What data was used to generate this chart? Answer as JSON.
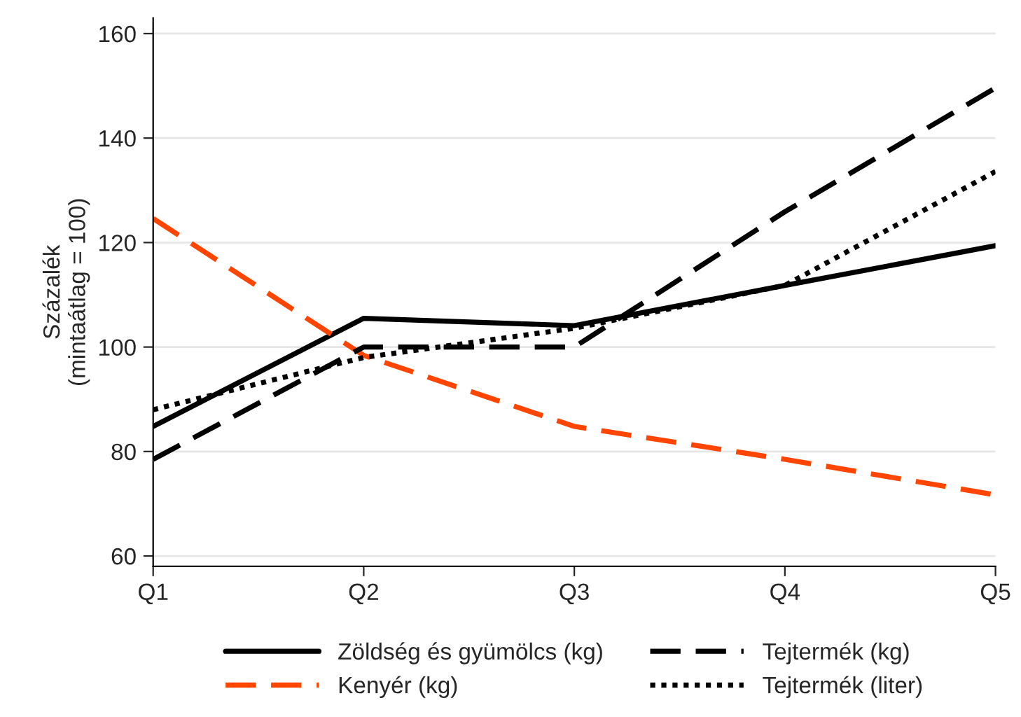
{
  "chart_data": {
    "type": "line",
    "ylabel": "Százalék\n(mintaátlag = 100)",
    "categories": [
      "Q1",
      "Q2",
      "Q3",
      "Q4",
      "Q5"
    ],
    "series": [
      {
        "name": "Zöldség és gyümölcs (kg)",
        "color": "#000000",
        "line_style": "solid",
        "values": [
          84.8,
          105.5,
          104.1,
          111.8,
          119.4
        ]
      },
      {
        "name": "Kenyér (kg)",
        "color": "#ff4500",
        "line_style": "dashed",
        "values": [
          124.6,
          98.4,
          84.8,
          78.5,
          71.7
        ]
      },
      {
        "name": "Tejtermék (kg)",
        "color": "#000000",
        "line_style": "dashed",
        "values": [
          78.5,
          100,
          100,
          125.9,
          149.6
        ]
      },
      {
        "name": "Tejtermék (liter)",
        "color": "#000000",
        "line_style": "dotted",
        "values": [
          88,
          98,
          103.6,
          111.8,
          133.6
        ]
      }
    ],
    "ylim": [
      58,
      163
    ],
    "yticks": [
      60,
      80,
      100,
      120,
      140,
      160
    ],
    "grid": "y",
    "legend": "bottom",
    "marker": "none"
  }
}
